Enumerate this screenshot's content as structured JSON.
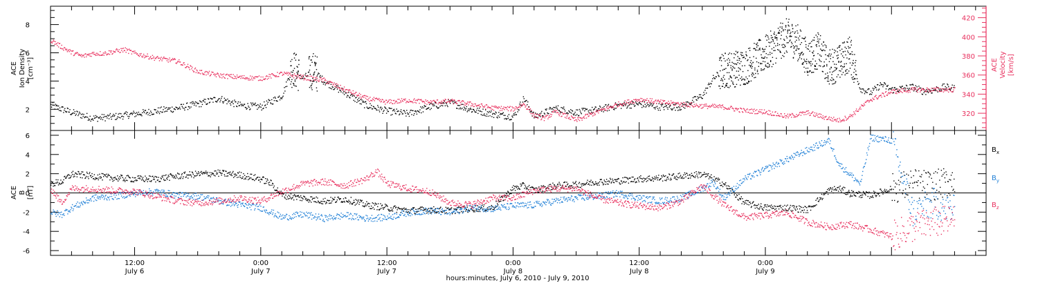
{
  "chart_data": [
    {
      "type": "scatter",
      "panel": "top",
      "x_unit": "hours since 2010-07-06 00:00",
      "xlim": [
        4,
        93
      ],
      "ylabel_left": [
        "ACE",
        "Ion Density",
        "[cm⁻³]"
      ],
      "ylabel_right": [
        "ACE",
        "Velocity",
        "[km/s]"
      ],
      "y_left_ticks": [
        "2",
        "4",
        "6",
        "8"
      ],
      "y_left_lim": [
        0.5,
        9.3
      ],
      "y_right_ticks": [
        "320",
        "340",
        "360",
        "380",
        "400",
        "420"
      ],
      "y_right_lim": [
        302,
        432
      ],
      "series": [
        {
          "axis": "left",
          "color": "#000000",
          "x": [
            4,
            6,
            8,
            10,
            12,
            14,
            16,
            18,
            20,
            22,
            24,
            26,
            27,
            28,
            29,
            30,
            32,
            34,
            36,
            38,
            40,
            42,
            44,
            46,
            48,
            49,
            50,
            51,
            52,
            54,
            56,
            58,
            60,
            62,
            64,
            66,
            67,
            68,
            70,
            72,
            74,
            75,
            76,
            77,
            78,
            79,
            80,
            81,
            82,
            83,
            84,
            85,
            86,
            87,
            88,
            89,
            90
          ],
          "y": [
            2.3,
            1.8,
            1.4,
            1.5,
            1.7,
            1.9,
            2.1,
            2.4,
            2.8,
            2.3,
            2.2,
            3.0,
            5.0,
            4.2,
            4.8,
            4.0,
            3.2,
            2.3,
            1.9,
            1.7,
            2.2,
            2.5,
            2.0,
            1.7,
            1.5,
            2.8,
            1.5,
            1.8,
            2.1,
            1.8,
            2.0,
            2.3,
            2.4,
            2.2,
            2.2,
            3.0,
            4.2,
            4.8,
            5.0,
            6.0,
            7.2,
            6.8,
            5.6,
            6.2,
            5.0,
            5.3,
            6.0,
            3.5,
            3.2,
            3.8,
            3.4,
            3.5,
            3.6,
            3.3,
            3.4,
            3.6,
            3.5
          ]
        },
        {
          "axis": "right",
          "color": "#e8305e",
          "x": [
            4,
            5,
            6,
            7,
            8,
            9,
            10,
            11,
            12,
            14,
            16,
            18,
            20,
            22,
            24,
            26,
            27,
            28,
            30,
            32,
            34,
            36,
            38,
            40,
            42,
            44,
            46,
            48,
            49,
            50,
            51,
            52,
            54,
            56,
            58,
            60,
            62,
            64,
            66,
            68,
            70,
            72,
            74,
            76,
            78,
            79,
            80,
            82,
            84,
            86,
            88,
            90
          ],
          "y": [
            397,
            390,
            384,
            380,
            383,
            383,
            385,
            387,
            383,
            378,
            375,
            364,
            360,
            358,
            357,
            362,
            360,
            358,
            355,
            345,
            336,
            332,
            334,
            332,
            333,
            330,
            326,
            325,
            330,
            318,
            315,
            322,
            313,
            322,
            330,
            335,
            332,
            330,
            328,
            327,
            323,
            322,
            317,
            321,
            315,
            313,
            317,
            335,
            343,
            345,
            345,
            345
          ]
        }
      ]
    },
    {
      "type": "scatter",
      "panel": "bottom",
      "x_unit": "hours since 2010-07-06 00:00",
      "xlim": [
        4,
        93
      ],
      "ylabel": [
        "ACE",
        "B",
        "[nT]"
      ],
      "y_ticks": [
        "-6",
        "-4",
        "-2",
        "0",
        "2",
        "4",
        "6"
      ],
      "ylim": [
        -6.5,
        6.5
      ],
      "zero_line": true,
      "legend": {
        "placement": "right",
        "entries": [
          "Bx",
          "By",
          "Bz"
        ]
      },
      "series": [
        {
          "name": "Bx",
          "color": "#000000",
          "x": [
            4,
            5,
            6,
            8,
            10,
            12,
            14,
            16,
            18,
            20,
            22,
            24,
            25,
            26,
            28,
            30,
            32,
            34,
            36,
            38,
            40,
            42,
            44,
            46,
            48,
            49,
            50,
            52,
            54,
            56,
            58,
            60,
            62,
            64,
            66,
            68,
            70,
            72,
            74,
            76,
            78,
            79,
            80,
            82,
            84,
            86,
            88,
            90
          ],
          "y": [
            1.0,
            1.2,
            2.0,
            1.8,
            1.6,
            1.5,
            1.5,
            1.8,
            2.0,
            2.1,
            1.9,
            1.5,
            1.0,
            -0.2,
            -0.5,
            -0.8,
            -0.6,
            -1.2,
            -1.5,
            -1.8,
            -1.7,
            -1.8,
            -1.6,
            -1.5,
            0.5,
            0.8,
            0.3,
            0.8,
            0.9,
            1.2,
            1.3,
            1.5,
            1.6,
            1.8,
            2.0,
            1.0,
            -1.0,
            -1.5,
            -1.5,
            -1.7,
            0.3,
            0.5,
            0,
            -0.2,
            0.5,
            1.0,
            0.8,
            1.4
          ]
        },
        {
          "name": "By",
          "color": "#1f7fd6",
          "x": [
            4,
            5,
            6,
            8,
            10,
            12,
            14,
            16,
            18,
            20,
            22,
            24,
            26,
            28,
            30,
            32,
            34,
            36,
            38,
            40,
            42,
            44,
            46,
            48,
            50,
            52,
            54,
            56,
            58,
            60,
            62,
            64,
            66,
            67,
            68,
            70,
            72,
            74,
            76,
            78,
            79,
            80,
            81,
            82,
            84,
            86,
            88,
            90
          ],
          "y": [
            -2.0,
            -2.2,
            -1.5,
            -0.5,
            -0.3,
            0,
            0.2,
            -0.2,
            -0.3,
            -0.8,
            -1.2,
            -1.5,
            -2.5,
            -2.2,
            -2.6,
            -2.3,
            -2.6,
            -2.5,
            -2.0,
            -1.8,
            -2.0,
            -1.5,
            -1.6,
            -1.3,
            -1.2,
            -0.8,
            -0.5,
            -0.3,
            0,
            -0.5,
            -0.8,
            -0.5,
            0.5,
            1.2,
            -0.5,
            1.5,
            2.5,
            3.5,
            4.5,
            5.5,
            3.0,
            2.0,
            1.0,
            5.8,
            5.5,
            -2.0,
            -1.0,
            -1.8
          ]
        },
        {
          "name": "Bz",
          "color": "#e8305e",
          "x": [
            4,
            5,
            6,
            8,
            10,
            12,
            14,
            16,
            18,
            20,
            22,
            24,
            26,
            28,
            30,
            32,
            34,
            35,
            36,
            38,
            40,
            42,
            44,
            46,
            48,
            50,
            52,
            54,
            56,
            58,
            60,
            62,
            64,
            66,
            68,
            70,
            72,
            74,
            76,
            78,
            80,
            82,
            84,
            86,
            88,
            90
          ],
          "y": [
            0.5,
            -1.0,
            0.5,
            0.5,
            0.3,
            0.2,
            -0.3,
            -0.8,
            -1.0,
            -0.8,
            -0.5,
            -0.8,
            0.2,
            1.0,
            1.2,
            0.8,
            1.5,
            2.3,
            1.0,
            0.5,
            0.2,
            -1.0,
            -1.2,
            -0.5,
            -0.5,
            0.3,
            0.5,
            0.5,
            -0.5,
            -1.0,
            -1.3,
            -1.5,
            -0.8,
            0.8,
            -1.2,
            -2.5,
            -2.3,
            -2.0,
            -3.0,
            -3.5,
            -3.2,
            -3.8,
            -4.5,
            -3.5,
            -3.0,
            -2.8
          ]
        }
      ]
    }
  ],
  "x_axis": {
    "ticks": [
      {
        "time": "12:00",
        "date": "July 6"
      },
      {
        "time": "0:00",
        "date": "July 7"
      },
      {
        "time": "12:00",
        "date": "July 7"
      },
      {
        "time": "0:00",
        "date": "July 8"
      },
      {
        "time": "12:00",
        "date": "July 8"
      },
      {
        "time": "0:00",
        "date": "July 9"
      }
    ],
    "label": "hours:minutes, July  6, 2010 - July  9, 2010"
  },
  "legend_labels": {
    "bx": {
      "base": "B",
      "sub": "x"
    },
    "by": {
      "base": "B",
      "sub": "y"
    },
    "bz": {
      "base": "B",
      "sub": "z"
    }
  },
  "colors": {
    "black": "#000000",
    "pink": "#e8305e",
    "blue": "#1f7fd6",
    "axis": "#000000"
  }
}
